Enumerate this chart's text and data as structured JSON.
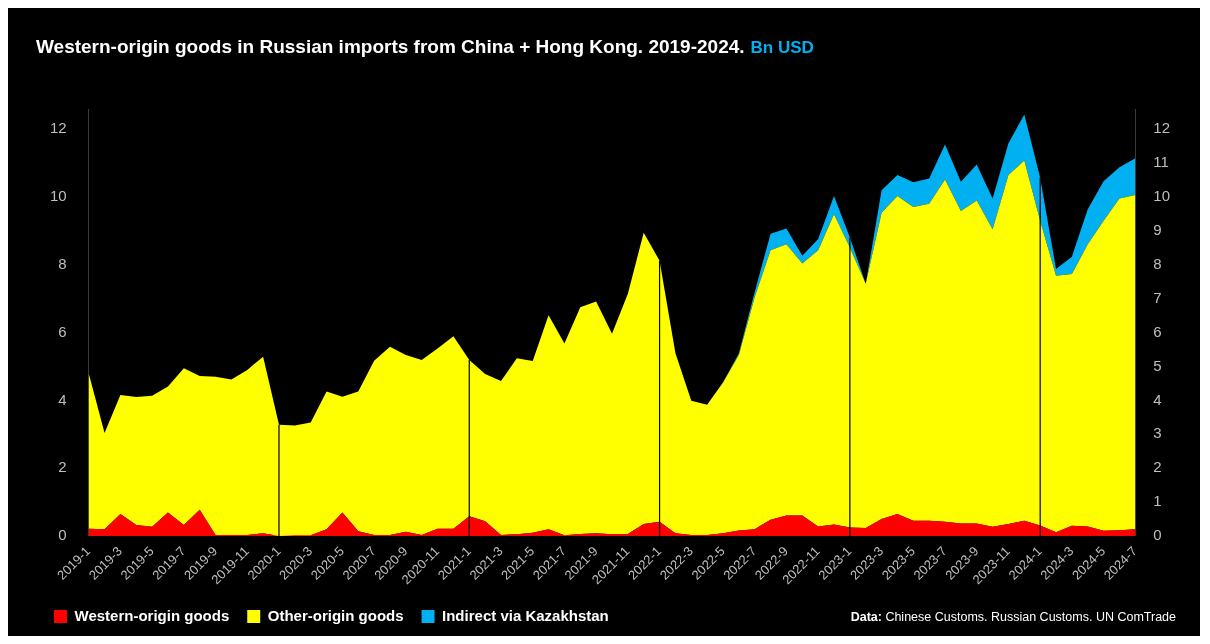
{
  "chart_data": {
    "type": "area",
    "title": "Western-origin goods in Russian imports from China + Hong Kong. 2019-2024.",
    "subtitle": "Bn USD",
    "categories": [
      "2019-1",
      null,
      "2019-3",
      null,
      "2019-5",
      null,
      "2019-7",
      null,
      "2019-9",
      null,
      "2019-11",
      null,
      "2020-1",
      null,
      "2020-3",
      null,
      "2020-5",
      null,
      "2020-7",
      null,
      "2020-9",
      null,
      "2020-11",
      null,
      "2021-1",
      null,
      "2021-3",
      null,
      "2021-5",
      null,
      "2021-7",
      null,
      "2021-9",
      null,
      "2021-11",
      null,
      "2022-1",
      null,
      "2022-3",
      null,
      "2022-5",
      null,
      "2022-7",
      null,
      "2022-9",
      null,
      "2022-11",
      null,
      "2023-1",
      null,
      "2023-3",
      null,
      "2023-5",
      null,
      "2023-7",
      null,
      "2023-9",
      null,
      "2023-11",
      null,
      "2024-1",
      null,
      "2024-3",
      null,
      "2024-5",
      null,
      "2024-7"
    ],
    "stacked": true,
    "series": [
      {
        "name": "Western-origin goods",
        "color": "#ff0000",
        "values": [
          0.21,
          0.2,
          0.65,
          0.32,
          0.27,
          0.69,
          0.32,
          0.77,
          0.03,
          0.03,
          0.03,
          0.08,
          0,
          0.02,
          0.02,
          0.2,
          0.69,
          0.14,
          0.03,
          0.03,
          0.12,
          0.03,
          0.21,
          0.21,
          0.58,
          0.43,
          0.03,
          0.05,
          0.09,
          0.2,
          0.02,
          0.06,
          0.08,
          0.05,
          0.06,
          0.35,
          0.42,
          0.08,
          0.03,
          0.03,
          0.08,
          0.16,
          0.2,
          0.48,
          0.6,
          0.6,
          0.28,
          0.34,
          0.25,
          0.23,
          0.5,
          0.65,
          0.45,
          0.45,
          0.42,
          0.37,
          0.37,
          0.27,
          0.35,
          0.45,
          0.31,
          0.11,
          0.3,
          0.28,
          0.15,
          0.17,
          0.2
        ]
      },
      {
        "name": "Other-origin goods",
        "color": "#ffff00",
        "values": [
          4.59,
          2.84,
          3.51,
          3.78,
          3.87,
          3.72,
          4.63,
          3.95,
          4.67,
          4.59,
          4.87,
          5.21,
          3.28,
          3.24,
          3.33,
          4.06,
          3.42,
          4.12,
          5.14,
          5.55,
          5.22,
          5.16,
          5.32,
          5.68,
          4.61,
          4.35,
          4.54,
          5.19,
          5.07,
          6.31,
          5.66,
          6.69,
          6.84,
          5.92,
          7.09,
          8.6,
          7.7,
          5.31,
          3.96,
          3.84,
          4.45,
          5.18,
          6.85,
          7.95,
          8.01,
          7.44,
          8.15,
          9.15,
          8.26,
          7.21,
          9.04,
          9.38,
          9.26,
          9.35,
          10.1,
          9.22,
          9.53,
          8.78,
          10.3,
          10.63,
          8.99,
          7.57,
          7.43,
          8.33,
          9.15,
          9.79,
          9.86
        ]
      },
      {
        "name": "Indirect via Kazakhstan",
        "color": "#00b0f0",
        "values": [
          0,
          0,
          0,
          0,
          0,
          0,
          0,
          0,
          0,
          0,
          0,
          0,
          0,
          0,
          0,
          0,
          0,
          0,
          0,
          0,
          0,
          0,
          0,
          0,
          0,
          0,
          0,
          0,
          0,
          0,
          0,
          0,
          0,
          0,
          0,
          0,
          0,
          0,
          0,
          0,
          0,
          0.05,
          0.15,
          0.49,
          0.46,
          0.23,
          0.33,
          0.54,
          0.3,
          0,
          0.66,
          0.62,
          0.73,
          0.75,
          1.03,
          0.86,
          1.06,
          0.91,
          0.94,
          1.36,
          1.27,
          0.2,
          0.51,
          1.03,
          1.17,
          0.92,
          1.09
        ]
      }
    ],
    "ylim": [
      0,
      12.6
    ],
    "yticks": [
      0,
      2,
      4,
      6,
      8,
      10,
      12
    ],
    "y2lim": [
      0,
      12.6
    ],
    "y2ticks": [
      0,
      1,
      2,
      3,
      4,
      5,
      6,
      7,
      8,
      9,
      10,
      11,
      12
    ],
    "ref_lines": [
      {
        "axis": "x",
        "value": "2020-1",
        "color": "#000000"
      },
      {
        "axis": "x",
        "value": "2021-1",
        "color": "#000000"
      },
      {
        "axis": "x",
        "value": "2022-1",
        "color": "#000000"
      },
      {
        "axis": "x",
        "value": "2023-1",
        "color": "#000000"
      },
      {
        "axis": "x",
        "value": "2024-1",
        "color": "#000000"
      }
    ],
    "legend": "bottom",
    "grid": false,
    "annotations": [
      "Data: Chinese Customs. Russian Customs. UN ComTrade"
    ]
  }
}
